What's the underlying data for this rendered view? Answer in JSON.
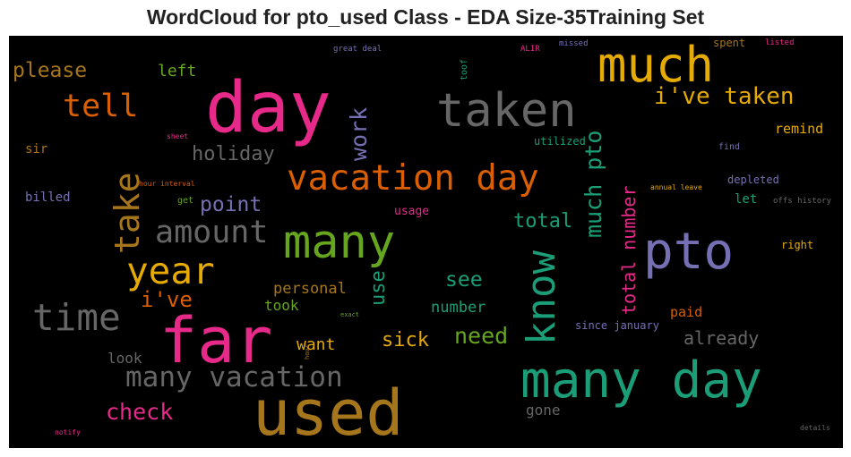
{
  "title": "WordCloud for pto_used Class - EDA Size-35Training Set",
  "words": [
    {
      "text": "day",
      "color": "#e7298a"
    },
    {
      "text": "taken",
      "color": "#666666"
    },
    {
      "text": "much",
      "color": "#e6ab02"
    },
    {
      "text": "pto",
      "color": "#7570b3"
    },
    {
      "text": "far",
      "color": "#e7298a"
    },
    {
      "text": "used",
      "color": "#a6761d"
    },
    {
      "text": "many day",
      "color": "#1b9e77"
    },
    {
      "text": "many",
      "color": "#66a61e"
    },
    {
      "text": "vacation day",
      "color": "#d95f02"
    },
    {
      "text": "know",
      "color": "#1b9e77"
    },
    {
      "text": "time",
      "color": "#666666"
    },
    {
      "text": "year",
      "color": "#e6ab02"
    },
    {
      "text": "amount",
      "color": "#666666"
    },
    {
      "text": "take",
      "color": "#a6761d"
    },
    {
      "text": "tell",
      "color": "#d95f02"
    },
    {
      "text": "i've taken",
      "color": "#e6ab02"
    },
    {
      "text": "much pto",
      "color": "#1b9e77"
    },
    {
      "text": "many vacation",
      "color": "#666666"
    },
    {
      "text": "work",
      "color": "#7570b3"
    },
    {
      "text": "please",
      "color": "#a6761d"
    },
    {
      "text": "holiday",
      "color": "#666666"
    },
    {
      "text": "total number",
      "color": "#e7298a"
    },
    {
      "text": "need",
      "color": "#66a61e"
    },
    {
      "text": "check",
      "color": "#e7298a"
    },
    {
      "text": "i've",
      "color": "#d95f02"
    },
    {
      "text": "point",
      "color": "#7570b3"
    },
    {
      "text": "total",
      "color": "#1b9e77"
    },
    {
      "text": "see",
      "color": "#1b9e77"
    },
    {
      "text": "sick",
      "color": "#e6ab02"
    },
    {
      "text": "use",
      "color": "#1b9e77"
    },
    {
      "text": "already",
      "color": "#666666"
    },
    {
      "text": "left",
      "color": "#66a61e"
    },
    {
      "text": "personal",
      "color": "#a6761d"
    },
    {
      "text": "want",
      "color": "#e6ab02"
    },
    {
      "text": "number",
      "color": "#1b9e77"
    },
    {
      "text": "took",
      "color": "#66a61e"
    },
    {
      "text": "paid",
      "color": "#d95f02"
    },
    {
      "text": "look",
      "color": "#666666"
    },
    {
      "text": "gone",
      "color": "#666666"
    },
    {
      "text": "remind",
      "color": "#e6ab02"
    },
    {
      "text": "sir",
      "color": "#a6761d"
    },
    {
      "text": "billed",
      "color": "#7570b3"
    },
    {
      "text": "usage",
      "color": "#e7298a"
    },
    {
      "text": "utilized",
      "color": "#1b9e77"
    },
    {
      "text": "let",
      "color": "#1b9e77"
    },
    {
      "text": "right",
      "color": "#e6ab02"
    },
    {
      "text": "depleted",
      "color": "#7570b3"
    },
    {
      "text": "since january",
      "color": "#7570b3"
    },
    {
      "text": "spent",
      "color": "#a6761d"
    },
    {
      "text": "toof",
      "color": "#1b9e77"
    },
    {
      "text": "find",
      "color": "#7570b3"
    },
    {
      "text": "great deal",
      "color": "#7570b3"
    },
    {
      "text": "ALIR",
      "color": "#e7298a"
    },
    {
      "text": "missed",
      "color": "#7570b3"
    },
    {
      "text": "listed",
      "color": "#e7298a"
    },
    {
      "text": "sheet",
      "color": "#e7298a"
    },
    {
      "text": "hour interval",
      "color": "#d95f02"
    },
    {
      "text": "get",
      "color": "#66a61e"
    },
    {
      "text": "annual leave",
      "color": "#e6ab02"
    },
    {
      "text": "offs history",
      "color": "#666666"
    },
    {
      "text": "exact",
      "color": "#66a61e"
    },
    {
      "text": "hour",
      "color": "#a6761d"
    },
    {
      "text": "notify",
      "color": "#e7298a"
    },
    {
      "text": "details",
      "color": "#666666"
    }
  ]
}
